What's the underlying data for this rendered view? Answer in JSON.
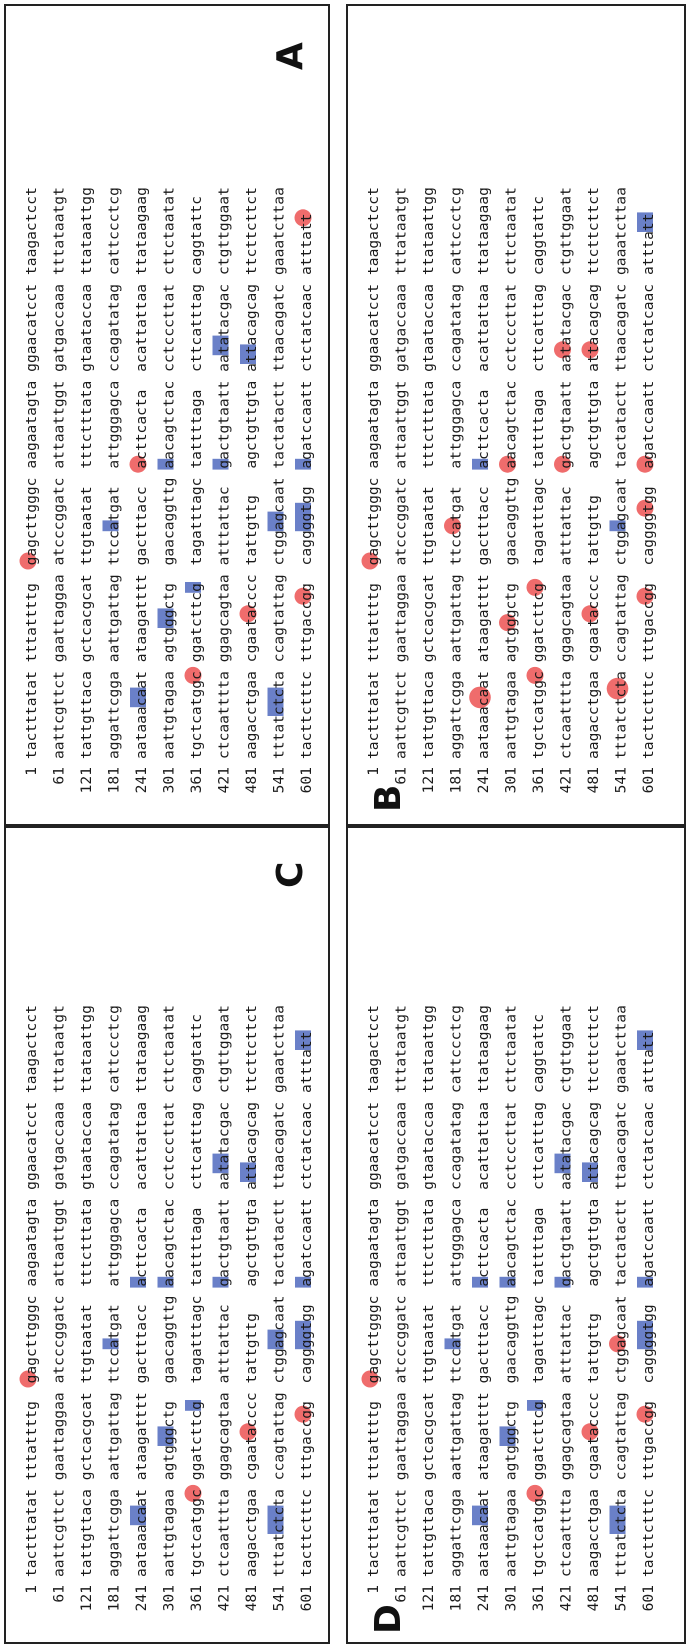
{
  "colors": {
    "box_highlight": "#6a80c8",
    "circle_highlight": "#ef6c6c",
    "text": "#1a1a1a",
    "border": "#222222"
  },
  "sequence": {
    "row_numbers": [
      "1",
      "61",
      "121",
      "181",
      "241",
      "301",
      "361",
      "421",
      "481",
      "541",
      "601"
    ],
    "rows": [
      [
        "tactttatat",
        "tttattttg",
        "gagcttgggc",
        "aagaatagta",
        "ggaacatcct",
        "taagactcct"
      ],
      [
        "aattcgttct",
        "gaattaggaa",
        "atcccggatc",
        "attaattggt",
        "gatgaccaaa",
        "tttataatgt"
      ],
      [
        "tattgttaca",
        "gctcacgcat",
        "ttgtaatat",
        "tttctttata",
        "gtaataccaa",
        "ttataattgg"
      ],
      [
        "aggattcgga",
        "aattgattag",
        "ttccatgat",
        "attgggagca",
        "ccagatatag",
        "cattccctcg"
      ],
      [
        "aataaacaat",
        "ataagatttt",
        "gactttacc",
        "acttcacta",
        "acattattaa",
        "ttataagaag"
      ],
      [
        "aattgtagaa",
        "agtgggctg",
        "gaacaggttg",
        "aacagtctac",
        "cctcccttat",
        "cttctaatat"
      ],
      [
        "tgctcatggc",
        "ggatcttcg",
        "tagatttagc",
        "tattttaga",
        "cttcatttag",
        "caggtattc"
      ],
      [
        "ctcaatttta",
        "ggagcagtaa",
        "atttattac",
        "gactgtaatt",
        "aatatacgac",
        "ctgttggaat"
      ],
      [
        "aagacctgaa",
        "cgaatacccc",
        "tattgttg",
        "agctgttgta",
        "attacagcag",
        "ttcttcttct"
      ],
      [
        "tttatctcta",
        "ccagtattag",
        "ctggagcaat",
        "tactatactt",
        "ttaacagatc",
        "gaaatcttaa"
      ],
      [
        "tacttctttc",
        "tttgaccgg",
        "caggggtgg",
        "agatccaatt",
        "ctctatcaac",
        "atttatt"
      ]
    ]
  },
  "panels": [
    {
      "label": "A"
    },
    {
      "label": "B"
    },
    {
      "label": "C"
    },
    {
      "label": "D"
    }
  ]
}
